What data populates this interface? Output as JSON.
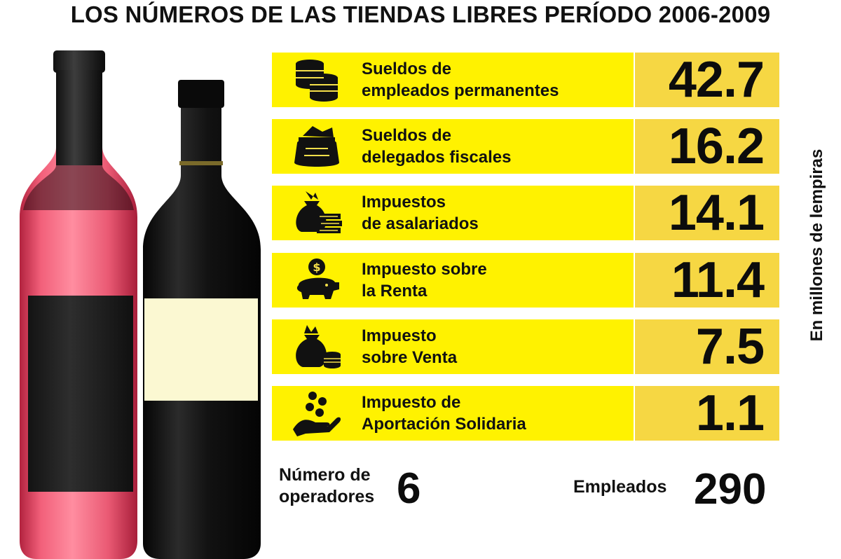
{
  "title": "LOS NÚMEROS DE LAS TIENDAS LIBRES PERÍODO 2006-2009",
  "unit_label": "En millones de lempiras",
  "colors": {
    "label_bg": "#fff200",
    "value_bg": "#f6d743",
    "text": "#111111"
  },
  "chart_data": {
    "type": "table",
    "title": "LOS NÚMEROS DE LAS TIENDAS LIBRES PERÍODO 2006-2009",
    "unit": "En millones de lempiras",
    "rows": [
      {
        "label_lines": [
          "Sueldos de",
          "empleados permanentes"
        ],
        "value": 42.7,
        "display": "42.7",
        "icon": "coin-stacks-icon"
      },
      {
        "label_lines": [
          "Sueldos de",
          "delegados fiscales"
        ],
        "value": 16.2,
        "display": "16.2",
        "icon": "money-sack-icon"
      },
      {
        "label_lines": [
          "Impuestos",
          "de asalariados"
        ],
        "value": 14.1,
        "display": "14.1",
        "icon": "money-bag-bills-icon"
      },
      {
        "label_lines": [
          "Impuesto sobre",
          "la Renta"
        ],
        "value": 11.4,
        "display": "11.4",
        "icon": "piggy-bank-icon"
      },
      {
        "label_lines": [
          "Impuesto",
          "sobre Venta"
        ],
        "value": 7.5,
        "display": "7.5",
        "icon": "money-bag-coins-icon"
      },
      {
        "label_lines": [
          "Impuesto de",
          "Aportación Solidaria"
        ],
        "value": 1.1,
        "display": "1.1",
        "icon": "hand-coins-icon"
      }
    ]
  },
  "footer": {
    "operators": {
      "label_lines": [
        "Número de",
        "operadores"
      ],
      "value": "6"
    },
    "employees": {
      "label": "Empleados",
      "value": "290"
    }
  }
}
